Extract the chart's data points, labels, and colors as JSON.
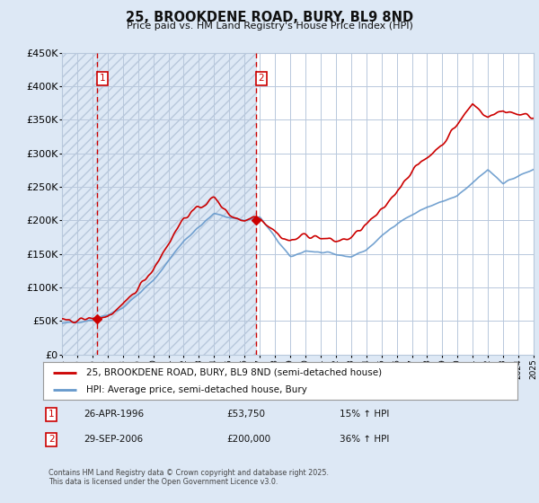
{
  "title": "25, BROOKDENE ROAD, BURY, BL9 8ND",
  "subtitle": "Price paid vs. HM Land Registry's House Price Index (HPI)",
  "legend_line1": "25, BROOKDENE ROAD, BURY, BL9 8ND (semi-detached house)",
  "legend_line2": "HPI: Average price, semi-detached house, Bury",
  "footer": "Contains HM Land Registry data © Crown copyright and database right 2025.\nThis data is licensed under the Open Government Licence v3.0.",
  "annotation1": {
    "label": "1",
    "date": "26-APR-1996",
    "price": "£53,750",
    "hpi": "15% ↑ HPI"
  },
  "annotation2": {
    "label": "2",
    "date": "29-SEP-2006",
    "price": "£200,000",
    "hpi": "36% ↑ HPI"
  },
  "ylim": [
    0,
    450000
  ],
  "yticks": [
    0,
    50000,
    100000,
    150000,
    200000,
    250000,
    300000,
    350000,
    400000,
    450000
  ],
  "ytick_labels": [
    "£0",
    "£50K",
    "£100K",
    "£150K",
    "£200K",
    "£250K",
    "£300K",
    "£350K",
    "£400K",
    "£450K"
  ],
  "bg_color": "#dde8f5",
  "plot_bg": "#ffffff",
  "grid_color": "#b8c8dc",
  "red_color": "#cc0000",
  "blue_color": "#6699cc",
  "hatch_bg": "#dde8f5",
  "xtick_start": 1994,
  "xtick_end": 2025,
  "sale1_x": 1996.32,
  "sale1_y": 53750,
  "sale2_x": 2006.75,
  "sale2_y": 200000
}
